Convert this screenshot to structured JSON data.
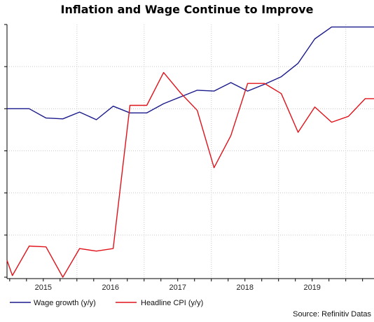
{
  "title": "Inflation and Wage Continue to Improve",
  "source": "Source: Refinitiv Datas",
  "colors": {
    "wage": "#1a1a8c",
    "cpi": "#e0121a",
    "grid": "#c8c8c8",
    "axis": "#000000"
  },
  "chart_data": {
    "type": "line",
    "title": "Inflation and Wage Continue to Improve",
    "xlabel": "",
    "ylabel": "",
    "x_tick_labels": [
      "2015",
      "2016",
      "2017",
      "2018",
      "2019"
    ],
    "x_tick_values": [
      2015.0,
      2016.0,
      2017.0,
      2018.0,
      2019.0
    ],
    "xlim": [
      2014.46,
      2019.92
    ],
    "ylim": [
      0.0,
      3.0
    ],
    "y_gridlines": [
      0.5,
      1.0,
      1.5,
      2.0,
      2.5
    ],
    "x_gridlines": [
      2015.5,
      2016.5,
      2017.5,
      2018.5,
      2019.5
    ],
    "grid": true,
    "legend_position": "bottom",
    "series": [
      {
        "name": "Wage growth (y/y)",
        "color": "#1a1a8c",
        "x": [
          2014.46,
          2014.79,
          2015.04,
          2015.29,
          2015.54,
          2015.79,
          2016.04,
          2016.29,
          2016.54,
          2016.79,
          2017.04,
          2017.29,
          2017.54,
          2017.79,
          2018.04,
          2018.29,
          2018.54,
          2018.79,
          2019.04,
          2019.29,
          2019.54,
          2019.79,
          2019.92
        ],
        "y": [
          2.0,
          2.0,
          1.89,
          1.88,
          1.96,
          1.87,
          2.03,
          1.95,
          1.95,
          2.06,
          2.14,
          2.22,
          2.21,
          2.31,
          2.21,
          2.29,
          2.38,
          2.54,
          2.83,
          2.97,
          2.97,
          2.97,
          2.97
        ]
      },
      {
        "name": "Headline CPI (y/y)",
        "color": "#e0121a",
        "x": [
          2014.46,
          2014.54,
          2014.79,
          2015.04,
          2015.29,
          2015.54,
          2015.79,
          2016.04,
          2016.29,
          2016.54,
          2016.79,
          2017.04,
          2017.29,
          2017.54,
          2017.79,
          2018.04,
          2018.29,
          2018.54,
          2018.79,
          2019.04,
          2019.29,
          2019.54,
          2019.79,
          2019.92
        ],
        "y": [
          0.2,
          0.02,
          0.37,
          0.36,
          0.0,
          0.34,
          0.31,
          0.34,
          2.04,
          2.04,
          2.43,
          2.19,
          1.98,
          1.3,
          1.68,
          2.3,
          2.3,
          2.18,
          1.72,
          2.02,
          1.84,
          1.91,
          2.12,
          2.12
        ]
      }
    ]
  }
}
